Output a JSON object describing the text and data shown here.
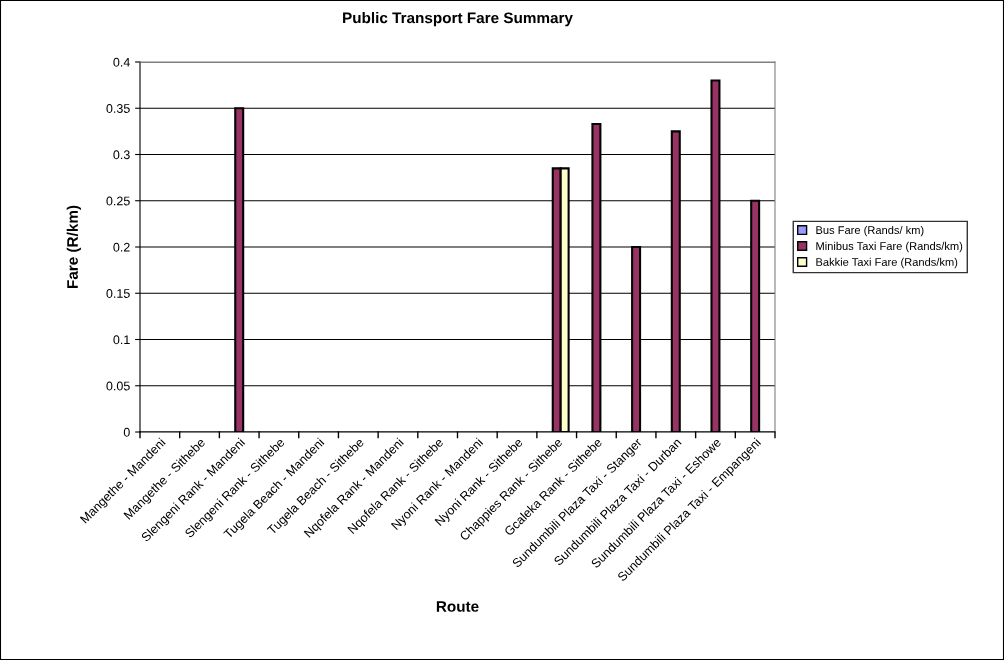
{
  "chart_data": {
    "type": "bar",
    "title": "Public Transport Fare Summary",
    "xlabel": "Route",
    "ylabel": "Fare (R/km)",
    "categories": [
      "Mangethe - Mandeni",
      "Mangethe - Sithebe",
      "Slengeni Rank - Mandeni",
      "Slengeni Rank - Sithebe",
      "Tugela Beach - Mandeni",
      "Tugela Beach - Sithebe",
      "Nqofela Rank - Mandeni",
      "Nqofela Rank - Sithebe",
      "Nyoni Rank - Mandeni",
      "Nyoni Rank - Sithebe",
      "Chappies Rank - Sithebe",
      "Gcaleka Rank - Sithebe",
      "Sundumbili Plaza Taxi - Stanger",
      "Sundumbili Plaza Taxi - Durban",
      "Sundumbili Plaza Taxi - Eshowe",
      "Sundumbili Plaza Taxi - Empangeni"
    ],
    "series": [
      {
        "name": "Bus Fare (Rands/ km)",
        "color": "#9999ff",
        "values": [
          null,
          null,
          null,
          null,
          null,
          null,
          null,
          null,
          null,
          null,
          null,
          null,
          null,
          null,
          null,
          null
        ]
      },
      {
        "name": "Minibus Taxi Fare (Rands/km)",
        "color": "#993366",
        "values": [
          null,
          null,
          0.35,
          null,
          null,
          null,
          null,
          null,
          null,
          null,
          0.285,
          0.333,
          0.2,
          0.325,
          0.38,
          0.25
        ]
      },
      {
        "name": "Bakkie Taxi Fare (Rands/km)",
        "color": "#ffffcc",
        "values": [
          null,
          null,
          null,
          null,
          null,
          null,
          null,
          null,
          null,
          null,
          0.285,
          null,
          null,
          null,
          null,
          null
        ]
      }
    ],
    "ylim": [
      0,
      0.4
    ],
    "yticks": [
      {
        "value": 0,
        "label": "0"
      },
      0.05,
      0.1,
      0.15,
      0.2,
      0.25,
      0.3,
      0.35,
      0.4
    ],
    "grid": "y",
    "legend": "right"
  }
}
